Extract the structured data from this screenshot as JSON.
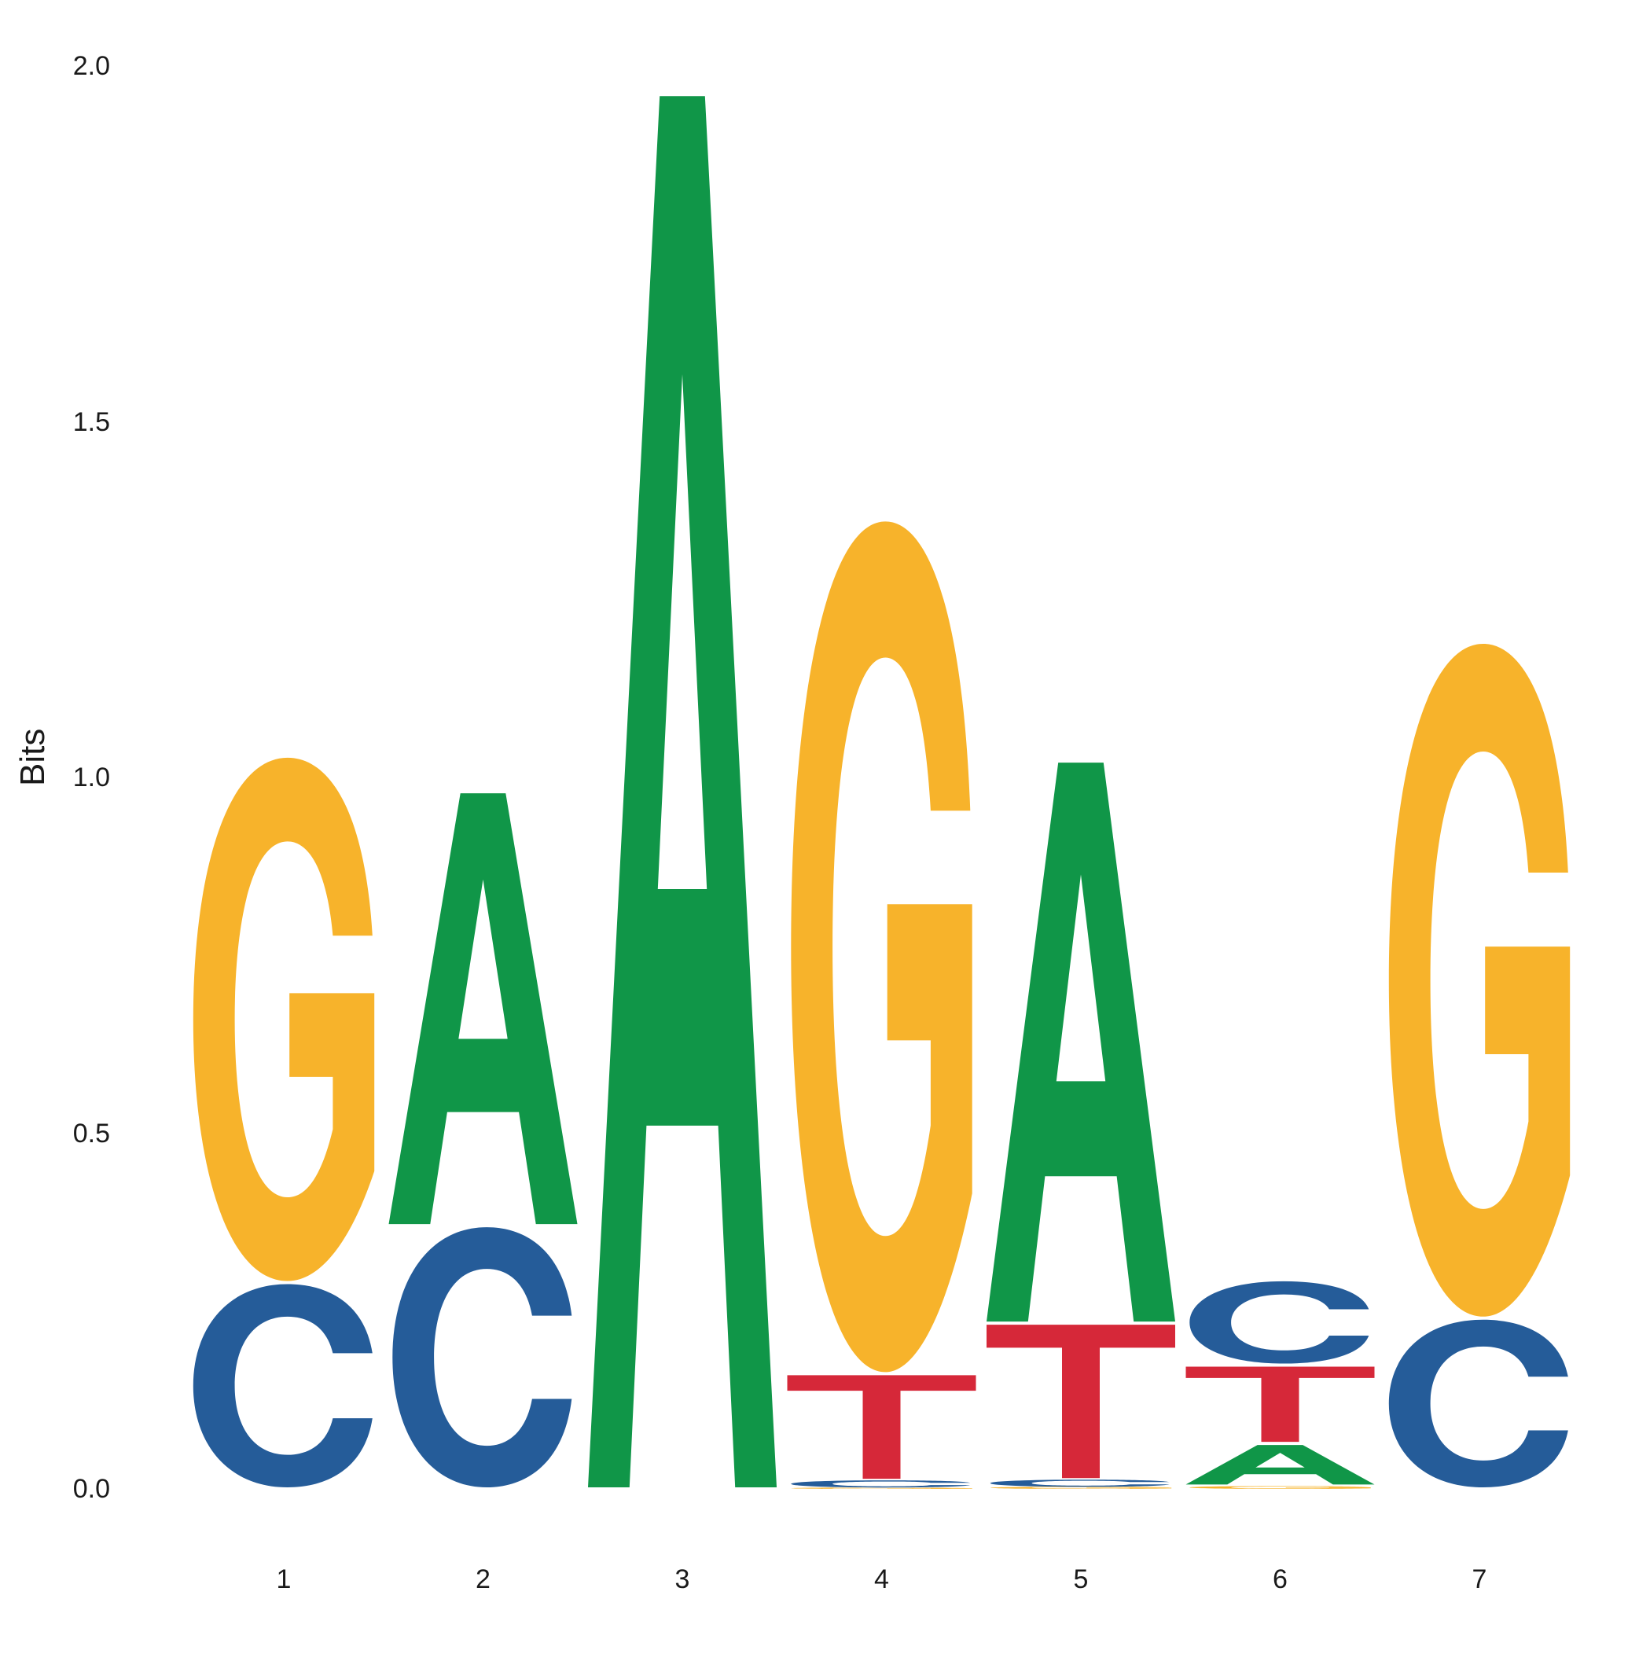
{
  "chart_data": {
    "type": "sequence-logo",
    "xlabel": "",
    "ylabel": "Bits",
    "ylim": [
      0,
      2.0
    ],
    "y_ticks": [
      "0.0",
      "0.5",
      "1.0",
      "1.5",
      "2.0"
    ],
    "x_ticks": [
      "1",
      "2",
      "3",
      "4",
      "5",
      "6",
      "7"
    ],
    "grid": false,
    "colors": {
      "A": "#109648",
      "C": "#255C99",
      "G": "#F7B32B",
      "T": "#D62839"
    },
    "positions": [
      {
        "position": "1",
        "stack": [
          {
            "letter": "C",
            "bits": 0.29
          },
          {
            "letter": "G",
            "bits": 0.74
          }
        ]
      },
      {
        "position": "2",
        "stack": [
          {
            "letter": "C",
            "bits": 0.37
          },
          {
            "letter": "A",
            "bits": 0.61
          }
        ]
      },
      {
        "position": "3",
        "stack": [
          {
            "letter": "A",
            "bits": 1.96
          }
        ]
      },
      {
        "position": "4",
        "stack": [
          {
            "letter": "G",
            "bits": 0.002
          },
          {
            "letter": "C",
            "bits": 0.01
          },
          {
            "letter": "T",
            "bits": 0.15
          },
          {
            "letter": "G",
            "bits": 1.2
          }
        ]
      },
      {
        "position": "5",
        "stack": [
          {
            "letter": "G",
            "bits": 0.003
          },
          {
            "letter": "C",
            "bits": 0.01
          },
          {
            "letter": "T",
            "bits": 0.22
          },
          {
            "letter": "A",
            "bits": 0.79
          }
        ]
      },
      {
        "position": "6",
        "stack": [
          {
            "letter": "G",
            "bits": 0.004
          },
          {
            "letter": "A",
            "bits": 0.06
          },
          {
            "letter": "T",
            "bits": 0.11
          },
          {
            "letter": "C",
            "bits": 0.12
          }
        ]
      },
      {
        "position": "7",
        "stack": [
          {
            "letter": "C",
            "bits": 0.24
          },
          {
            "letter": "G",
            "bits": 0.95
          }
        ]
      }
    ]
  }
}
